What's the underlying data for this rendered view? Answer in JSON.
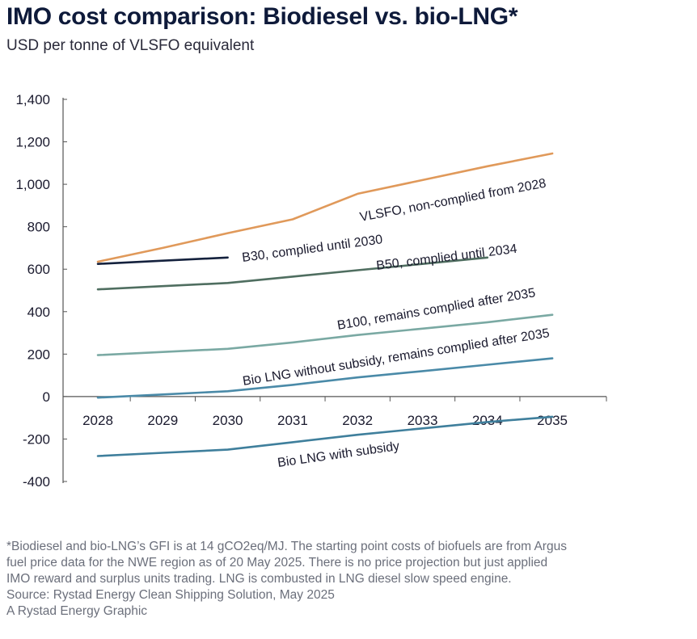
{
  "header": {
    "title": "IMO cost comparison: Biodiesel vs. bio-LNG*",
    "subtitle": "USD per tonne of VLSFO equivalent"
  },
  "footer": {
    "note_lines": [
      "*Biodiesel and bio-LNG’s GFI is at 14 gCO2eq/MJ. The starting point costs of biofuels are from Argus",
      "fuel price data for the NWE region as of 20 May 2025. There is no price projection but just applied",
      "IMO reward and surplus units trading. LNG is combusted in LNG diesel slow speed engine."
    ],
    "source": "Source: Rystad Energy Clean Shipping Solution, May 2025",
    "credit": "A Rystad Energy Graphic"
  },
  "chart_data": {
    "type": "line",
    "title": "IMO cost comparison: Biodiesel vs. bio-LNG*",
    "subtitle": "USD per tonne of VLSFO equivalent",
    "xlabel": "",
    "ylabel": "",
    "categories": [
      "2028",
      "2029",
      "2030",
      "2031",
      "2032",
      "2033",
      "2034",
      "2035"
    ],
    "ylim": [
      -400,
      1400
    ],
    "yticks": [
      -400,
      -200,
      0,
      200,
      400,
      600,
      800,
      1000,
      1200,
      1400
    ],
    "ytick_labels": [
      "-400",
      "-200",
      "0",
      "200",
      "400",
      "600",
      "800",
      "1,000",
      "1,200",
      "1,400"
    ],
    "grid": false,
    "legend": "none (inline labels)",
    "series": [
      {
        "name": "VLSFO, non-complied from 2028",
        "color": "#e0995a",
        "points": [
          [
            2028,
            635
          ],
          [
            2029,
            700
          ],
          [
            2030,
            770
          ],
          [
            2031,
            835
          ],
          [
            2032,
            955
          ],
          [
            2033,
            1020
          ],
          [
            2034,
            1085
          ],
          [
            2035,
            1145
          ]
        ]
      },
      {
        "name": "B30, complied until 2030",
        "color": "#14213d",
        "points": [
          [
            2028,
            625
          ],
          [
            2029,
            640
          ],
          [
            2030,
            655
          ]
        ]
      },
      {
        "name": "B50, complied until 2034",
        "color": "#4f6e60",
        "points": [
          [
            2028,
            505
          ],
          [
            2029,
            520
          ],
          [
            2030,
            535
          ],
          [
            2031,
            565
          ],
          [
            2032,
            595
          ],
          [
            2033,
            625
          ],
          [
            2034,
            655
          ]
        ]
      },
      {
        "name": "B100, remains complied after 2035",
        "color": "#7aa9a3",
        "points": [
          [
            2028,
            195
          ],
          [
            2029,
            210
          ],
          [
            2030,
            225
          ],
          [
            2031,
            255
          ],
          [
            2032,
            290
          ],
          [
            2033,
            320
          ],
          [
            2034,
            350
          ],
          [
            2035,
            385
          ]
        ]
      },
      {
        "name": "Bio LNG without subsidy, remains complied after 2035",
        "color": "#4a8aa8",
        "points": [
          [
            2028,
            -5
          ],
          [
            2029,
            10
          ],
          [
            2030,
            25
          ],
          [
            2031,
            55
          ],
          [
            2032,
            90
          ],
          [
            2033,
            120
          ],
          [
            2034,
            150
          ],
          [
            2035,
            180
          ]
        ]
      },
      {
        "name": "Bio LNG with subsidy",
        "color": "#3f7f9c",
        "points": [
          [
            2028,
            -280
          ],
          [
            2029,
            -265
          ],
          [
            2030,
            -250
          ],
          [
            2031,
            -215
          ],
          [
            2032,
            -180
          ],
          [
            2033,
            -150
          ],
          [
            2034,
            -120
          ],
          [
            2035,
            -95
          ]
        ]
      }
    ]
  }
}
